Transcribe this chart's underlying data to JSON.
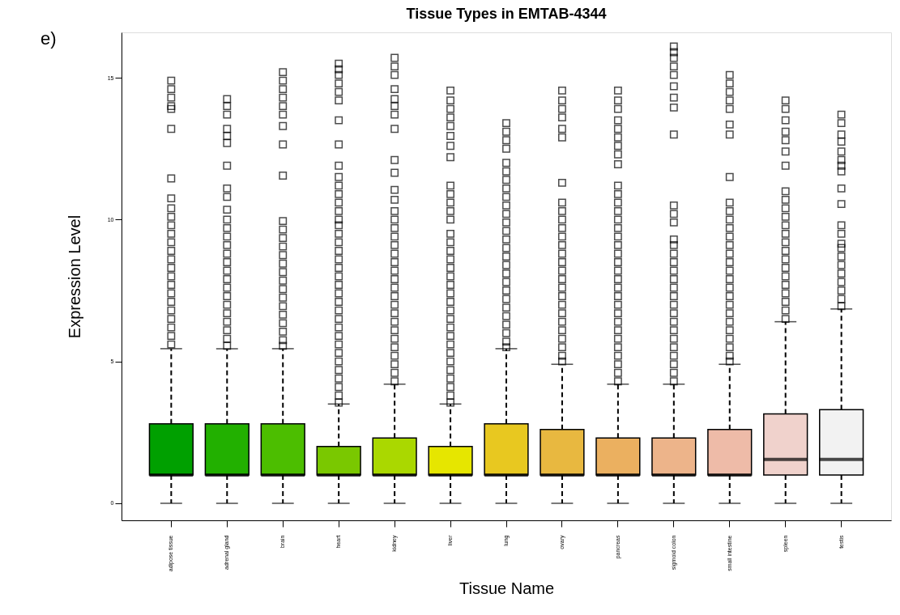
{
  "chart_data": {
    "type": "box",
    "title": "Tissue Types in EMTAB-4344",
    "xlabel": "Tissue Name",
    "ylabel": "Expression Level",
    "annotations": [
      "e)"
    ],
    "marker": "square",
    "grid": false,
    "categories": [
      "adipose tissue",
      "adrenal gland",
      "brain",
      "heart",
      "kidney",
      "liver",
      "lung",
      "ovary",
      "pancreas",
      "sigmoid colon",
      "small intestine",
      "spleen",
      "testis"
    ],
    "colors": [
      "#00a000",
      "#22b000",
      "#4cbe00",
      "#7ac800",
      "#aad800",
      "#e6e600",
      "#e8c820",
      "#e8b840",
      "#ebb060",
      "#edb48a",
      "#eebba8",
      "#f0d2cc",
      "#f2f2f2"
    ],
    "boxes": [
      {
        "low": 0,
        "q1": 1,
        "median": 1,
        "q3": 2.8,
        "high": 5.45,
        "outliers": [
          14.9,
          14.6,
          14.3,
          14.0,
          13.9,
          13.2,
          11.45,
          10.75,
          10.4,
          10.1,
          9.8,
          9.5,
          9.2,
          8.9,
          8.6,
          8.3,
          8.0,
          7.7,
          7.4,
          7.1,
          6.8,
          6.5,
          6.2,
          5.9,
          5.6
        ]
      },
      {
        "low": 0,
        "q1": 1,
        "median": 1,
        "q3": 2.8,
        "high": 5.45,
        "outliers": [
          14.25,
          14.0,
          13.7,
          13.2,
          12.95,
          12.7,
          11.9,
          11.1,
          10.8,
          10.35,
          10.0,
          9.7,
          9.4,
          9.1,
          8.8,
          8.5,
          8.2,
          7.9,
          7.6,
          7.3,
          7.0,
          6.7,
          6.4,
          6.1,
          5.8,
          5.55
        ]
      },
      {
        "low": 0,
        "q1": 1,
        "median": 1,
        "q3": 2.8,
        "high": 5.45,
        "outliers": [
          15.2,
          14.9,
          14.6,
          14.3,
          14.0,
          13.7,
          13.3,
          12.65,
          11.55,
          9.95,
          9.65,
          9.35,
          9.05,
          8.75,
          8.45,
          8.15,
          7.85,
          7.55,
          7.25,
          6.95,
          6.65,
          6.35,
          6.05,
          5.75,
          5.55
        ]
      },
      {
        "low": 0,
        "q1": 1,
        "median": 1,
        "q3": 2,
        "high": 3.5,
        "outliers": [
          15.5,
          15.3,
          15.1,
          14.8,
          14.5,
          14.2,
          13.5,
          12.65,
          11.9,
          11.5,
          11.2,
          10.9,
          10.6,
          10.3,
          10.0,
          9.8,
          9.5,
          9.2,
          8.9,
          8.6,
          8.3,
          8.0,
          7.7,
          7.4,
          7.1,
          6.8,
          6.5,
          6.2,
          5.9,
          5.6,
          5.3,
          5.0,
          4.7,
          4.4,
          4.1,
          3.8,
          3.55
        ]
      },
      {
        "low": 0,
        "q1": 1,
        "median": 1,
        "q3": 2.3,
        "high": 4.2,
        "outliers": [
          15.7,
          15.4,
          15.1,
          14.6,
          14.25,
          14.0,
          13.7,
          13.2,
          12.1,
          11.65,
          11.05,
          10.7,
          10.3,
          10.0,
          9.7,
          9.4,
          9.1,
          8.8,
          8.5,
          8.2,
          7.9,
          7.6,
          7.3,
          7.0,
          6.7,
          6.4,
          6.1,
          5.8,
          5.5,
          5.2,
          4.9,
          4.6,
          4.3
        ]
      },
      {
        "low": 0,
        "q1": 1,
        "median": 1,
        "q3": 2,
        "high": 3.5,
        "outliers": [
          14.55,
          14.2,
          13.9,
          13.6,
          13.3,
          12.95,
          12.6,
          12.2,
          11.2,
          10.9,
          10.6,
          10.3,
          10.0,
          9.5,
          9.2,
          8.9,
          8.6,
          8.3,
          8.0,
          7.7,
          7.4,
          7.1,
          6.8,
          6.5,
          6.2,
          5.9,
          5.6,
          5.3,
          5.0,
          4.7,
          4.4,
          4.1,
          3.8,
          3.55
        ]
      },
      {
        "low": 0,
        "q1": 1,
        "median": 1,
        "q3": 2.8,
        "high": 5.45,
        "outliers": [
          13.4,
          13.1,
          12.8,
          12.5,
          12.0,
          11.7,
          11.4,
          11.1,
          10.8,
          10.5,
          10.2,
          9.9,
          9.6,
          9.3,
          9.0,
          8.7,
          8.4,
          8.1,
          7.8,
          7.5,
          7.2,
          6.9,
          6.6,
          6.3,
          6.0,
          5.7,
          5.5
        ]
      },
      {
        "low": 0,
        "q1": 1,
        "median": 1,
        "q3": 2.6,
        "high": 4.9,
        "outliers": [
          14.55,
          14.2,
          13.9,
          13.6,
          13.2,
          12.9,
          11.3,
          10.6,
          10.3,
          10.0,
          9.7,
          9.4,
          9.1,
          8.8,
          8.5,
          8.2,
          7.9,
          7.6,
          7.3,
          7.0,
          6.7,
          6.4,
          6.1,
          5.8,
          5.5,
          5.2,
          5.0
        ]
      },
      {
        "low": 0,
        "q1": 1,
        "median": 1,
        "q3": 2.3,
        "high": 4.2,
        "outliers": [
          14.55,
          14.2,
          13.9,
          13.5,
          13.2,
          12.9,
          12.6,
          12.3,
          11.95,
          11.2,
          10.9,
          10.6,
          10.3,
          10.0,
          9.7,
          9.4,
          9.1,
          8.8,
          8.5,
          8.2,
          7.9,
          7.6,
          7.3,
          7.0,
          6.7,
          6.4,
          6.1,
          5.8,
          5.5,
          5.2,
          4.9,
          4.6,
          4.3
        ]
      },
      {
        "low": 0,
        "q1": 1,
        "median": 1,
        "q3": 2.3,
        "high": 4.2,
        "outliers": [
          16.1,
          15.9,
          15.7,
          15.4,
          15.1,
          14.7,
          14.3,
          13.95,
          13.0,
          10.5,
          10.2,
          9.9,
          9.3,
          9.1,
          8.8,
          8.5,
          8.2,
          7.9,
          7.6,
          7.3,
          7.0,
          6.7,
          6.4,
          6.1,
          5.8,
          5.5,
          5.2,
          4.9,
          4.6,
          4.3
        ]
      },
      {
        "low": 0,
        "q1": 1,
        "median": 1,
        "q3": 2.6,
        "high": 4.9,
        "outliers": [
          15.1,
          14.8,
          14.5,
          14.2,
          13.9,
          13.35,
          13.0,
          11.5,
          10.6,
          10.3,
          10.0,
          9.7,
          9.4,
          9.1,
          8.8,
          8.5,
          8.2,
          7.9,
          7.6,
          7.3,
          7.0,
          6.7,
          6.4,
          6.1,
          5.8,
          5.5,
          5.2,
          5.0
        ]
      },
      {
        "low": 0,
        "q1": 1,
        "median": 1.55,
        "q3": 3.15,
        "high": 6.4,
        "outliers": [
          14.2,
          13.9,
          13.5,
          13.1,
          12.8,
          12.4,
          11.9,
          11.0,
          10.7,
          10.4,
          10.1,
          9.8,
          9.5,
          9.2,
          8.9,
          8.6,
          8.3,
          8.0,
          7.7,
          7.4,
          7.1,
          6.8,
          6.5
        ]
      },
      {
        "low": 0,
        "q1": 1,
        "median": 1.55,
        "q3": 3.3,
        "high": 6.85,
        "outliers": [
          13.7,
          13.4,
          13.0,
          12.75,
          12.4,
          12.1,
          11.9,
          11.7,
          11.1,
          10.55,
          9.8,
          9.5,
          9.15,
          9.0,
          8.7,
          8.4,
          8.1,
          7.8,
          7.5,
          7.2,
          6.95
        ]
      }
    ],
    "ylim": [
      -0.6,
      16.6
    ],
    "yticks": [
      0,
      5,
      10,
      15
    ]
  }
}
